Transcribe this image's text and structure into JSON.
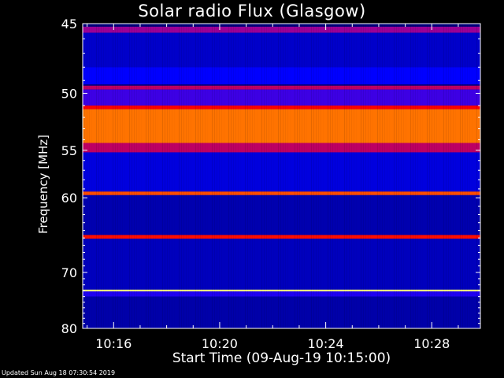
{
  "chart_data": {
    "type": "heatmap",
    "title": "Solar radio Flux (Glasgow)",
    "xlabel": "Start Time (09-Aug-19 10:15:00)",
    "ylabel": "Frequency [MHz]",
    "x_range_minutes": [
      "10:14:50",
      "10:29:50"
    ],
    "x_ticks": [
      "10:16",
      "10:20",
      "10:24",
      "10:28"
    ],
    "x_tick_minutes": [
      16,
      20,
      24,
      28
    ],
    "y_range_mhz": [
      45,
      80
    ],
    "y_ticks": [
      45,
      50,
      55,
      60,
      70,
      80
    ],
    "y_scale": "reciprocal",
    "colormap": [
      "#00007a",
      "#0000ff",
      "#7a00c8",
      "#ff0000",
      "#ff8000",
      "#ffff80"
    ],
    "bands": [
      {
        "freq_start": 45.2,
        "freq_end": 45.6,
        "level": 0.45
      },
      {
        "freq_start": 45.6,
        "freq_end": 48.0,
        "level": 0.12
      },
      {
        "freq_start": 48.0,
        "freq_end": 49.3,
        "level": 0.2
      },
      {
        "freq_start": 49.4,
        "freq_end": 49.7,
        "level": 0.5
      },
      {
        "freq_start": 49.7,
        "freq_end": 51.0,
        "level": 0.3
      },
      {
        "freq_start": 51.0,
        "freq_end": 51.3,
        "level": 0.6
      },
      {
        "freq_start": 51.3,
        "freq_end": 54.3,
        "level": 0.78
      },
      {
        "freq_start": 54.3,
        "freq_end": 55.2,
        "level": 0.5
      },
      {
        "freq_start": 55.2,
        "freq_end": 59.3,
        "level": 0.15
      },
      {
        "freq_start": 59.3,
        "freq_end": 59.7,
        "level": 0.72
      },
      {
        "freq_start": 59.7,
        "freq_end": 64.6,
        "level": 0.08
      },
      {
        "freq_start": 64.6,
        "freq_end": 65.1,
        "level": 0.62
      },
      {
        "freq_start": 65.1,
        "freq_end": 72.8,
        "level": 0.1
      },
      {
        "freq_start": 72.8,
        "freq_end": 73.1,
        "level": 1.0
      },
      {
        "freq_start": 73.1,
        "freq_end": 74.0,
        "level": 0.25
      },
      {
        "freq_start": 74.0,
        "freq_end": 80.0,
        "level": 0.07
      }
    ],
    "background_level": 0.1
  },
  "footer": "Updated Sun Aug 18 07:30:54 2019"
}
